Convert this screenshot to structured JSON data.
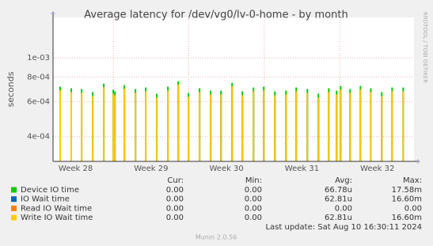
{
  "chart_data": {
    "type": "bar",
    "title": "Average latency for /dev/vg0/lv-0-home - by month",
    "y_label": "seconds",
    "log_scale": true,
    "grid": true,
    "x": [
      0.66,
      1.69,
      2.65,
      3.68,
      4.71,
      5.59,
      5.74,
      6.62,
      7.65,
      8.6,
      9.63,
      10.66,
      11.62,
      12.57,
      13.6,
      14.63,
      15.59,
      16.62,
      17.57,
      18.6,
      19.56,
      20.59,
      21.62,
      22.57,
      23.6,
      24.63,
      25.59,
      26.32,
      26.69,
      27.57,
      28.53,
      29.49,
      30.51,
      31.47,
      32.5
    ],
    "xlim": [
      0,
      33.5
    ],
    "xticks": [
      {
        "value": 2.1,
        "label": "Week 28"
      },
      {
        "value": 9.1,
        "label": "Week 29"
      },
      {
        "value": 16.1,
        "label": "Week 30"
      },
      {
        "value": 23.1,
        "label": "Week 31"
      },
      {
        "value": 30.1,
        "label": "Week 32"
      }
    ],
    "xgrid": [
      5.6,
      12.6,
      19.6,
      26.6
    ],
    "ylim": [
      0.0003,
      0.0016
    ],
    "yticks": [
      {
        "value": 0.0004,
        "label": "4e-04"
      },
      {
        "value": 0.0006,
        "label": "6e-04"
      },
      {
        "value": 0.0008,
        "label": "8e-04"
      },
      {
        "value": 0.001,
        "label": "1e-03"
      }
    ],
    "legend_headers": [
      "Cur:",
      "Min:",
      "Avg:",
      "Max:"
    ],
    "series": [
      {
        "name": "Device IO time",
        "color": "#00cc00",
        "cur": "0.00",
        "min": "0.00",
        "avg": "66.78u",
        "max": "17.58m",
        "values": [
          0.000715,
          0.000702,
          0.000696,
          0.000671,
          0.000741,
          0.00069,
          0.000677,
          0.000728,
          0.000696,
          0.000708,
          0.000659,
          0.000715,
          0.000762,
          0.000665,
          0.000702,
          0.000683,
          0.000683,
          0.000748,
          0.000677,
          0.000708,
          0.000715,
          0.000677,
          0.000683,
          0.000708,
          0.000696,
          0.000659,
          0.000702,
          0.000683,
          0.000721,
          0.000696,
          0.000721,
          0.000702,
          0.000671,
          0.000708,
          0.000708
        ]
      },
      {
        "name": "IO Wait time",
        "color": "#0066b3",
        "cur": "0.00",
        "min": "0.00",
        "avg": "62.81u",
        "max": "16.60m",
        "values": [
          0.000685,
          0.000672,
          0.000666,
          0.000641,
          0.000711,
          0.00066,
          0.000647,
          0.000698,
          0.000666,
          0.000678,
          0.000629,
          0.000685,
          0.000732,
          0.000635,
          0.000672,
          0.000653,
          0.000653,
          0.000718,
          0.000647,
          0.000678,
          0.000685,
          0.000647,
          0.000653,
          0.000678,
          0.000666,
          0.000629,
          0.000672,
          0.000653,
          0.000691,
          0.000666,
          0.000691,
          0.000672,
          0.000641,
          0.000678,
          0.000678
        ]
      },
      {
        "name": "Read IO Wait time",
        "color": "#ff8000",
        "cur": "0.00",
        "min": "0.00",
        "avg": "0.00",
        "max": "0.00",
        "values": [
          0,
          0,
          0,
          0,
          0,
          0,
          0,
          0,
          0,
          0,
          0,
          0,
          0,
          0,
          0,
          0,
          0,
          0,
          0,
          0,
          0,
          0,
          0,
          0,
          0,
          0,
          0,
          0,
          0,
          0,
          0,
          0,
          0,
          0,
          0
        ]
      },
      {
        "name": "Write IO Wait time",
        "color": "#ffcc00",
        "cur": "0.00",
        "min": "0.00",
        "avg": "62.81u",
        "max": "16.60m",
        "values": [
          0.000685,
          0.000672,
          0.000666,
          0.000641,
          0.000711,
          0.00066,
          0.000647,
          0.000698,
          0.000666,
          0.000678,
          0.000629,
          0.000685,
          0.000732,
          0.000635,
          0.000672,
          0.000653,
          0.000653,
          0.000718,
          0.000647,
          0.000678,
          0.000685,
          0.000647,
          0.000653,
          0.000678,
          0.000666,
          0.000629,
          0.000672,
          0.000653,
          0.000691,
          0.000666,
          0.000691,
          0.000672,
          0.000641,
          0.000678,
          0.000678
        ]
      }
    ],
    "last_update": "Last update: Sat Aug 10 16:30:11 2024",
    "watermark": "RRDTOOL / TOBI OETIKER",
    "footer": "Munin 2.0.56"
  }
}
